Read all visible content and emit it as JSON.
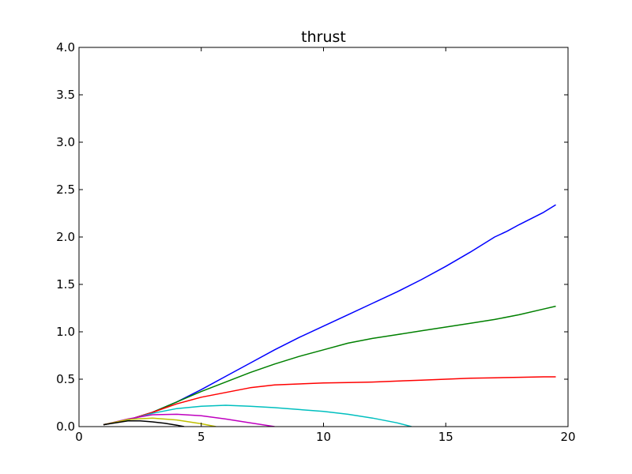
{
  "chart_data": {
    "type": "line",
    "title": "thrust",
    "xlabel": "",
    "ylabel": "",
    "xlim": [
      0,
      20
    ],
    "ylim": [
      0,
      4.0
    ],
    "x_ticks": [
      0,
      5,
      10,
      15,
      20
    ],
    "x_tick_labels": [
      "0",
      "5",
      "10",
      "15",
      "20"
    ],
    "y_ticks": [
      0,
      0.5,
      1.0,
      1.5,
      2.0,
      2.5,
      3.0,
      3.5,
      4.0
    ],
    "y_tick_labels": [
      "0.0",
      "0.5",
      "1.0",
      "1.5",
      "2.0",
      "2.5",
      "3.0",
      "3.5",
      "4.0"
    ],
    "grid": false,
    "legend": "none",
    "series": [
      {
        "color": "#0000ff",
        "points": [
          [
            1.0,
            0.02
          ],
          [
            2.0,
            0.07
          ],
          [
            3.0,
            0.15
          ],
          [
            4.0,
            0.26
          ],
          [
            5.0,
            0.39
          ],
          [
            6.0,
            0.53
          ],
          [
            7.0,
            0.67
          ],
          [
            8.0,
            0.81
          ],
          [
            9.0,
            0.94
          ],
          [
            10.0,
            1.06
          ],
          [
            11.0,
            1.18
          ],
          [
            12.0,
            1.3
          ],
          [
            13.0,
            1.42
          ],
          [
            14.0,
            1.55
          ],
          [
            15.0,
            1.69
          ],
          [
            16.0,
            1.84
          ],
          [
            17.0,
            2.0
          ],
          [
            17.5,
            2.06
          ],
          [
            18.0,
            2.13
          ],
          [
            19.0,
            2.26
          ],
          [
            19.5,
            2.34
          ]
        ]
      },
      {
        "color": "#008000",
        "points": [
          [
            1.0,
            0.02
          ],
          [
            2.0,
            0.07
          ],
          [
            3.0,
            0.15
          ],
          [
            4.0,
            0.26
          ],
          [
            5.0,
            0.37
          ],
          [
            6.0,
            0.47
          ],
          [
            7.0,
            0.57
          ],
          [
            8.0,
            0.66
          ],
          [
            9.0,
            0.74
          ],
          [
            10.0,
            0.81
          ],
          [
            11.0,
            0.88
          ],
          [
            12.0,
            0.93
          ],
          [
            13.0,
            0.97
          ],
          [
            14.0,
            1.01
          ],
          [
            15.0,
            1.05
          ],
          [
            16.0,
            1.09
          ],
          [
            17.0,
            1.13
          ],
          [
            18.0,
            1.18
          ],
          [
            19.0,
            1.24
          ],
          [
            19.5,
            1.27
          ]
        ]
      },
      {
        "color": "#ff0000",
        "points": [
          [
            1.0,
            0.02
          ],
          [
            2.0,
            0.07
          ],
          [
            3.0,
            0.15
          ],
          [
            4.0,
            0.24
          ],
          [
            5.0,
            0.31
          ],
          [
            6.0,
            0.36
          ],
          [
            7.0,
            0.41
          ],
          [
            8.0,
            0.44
          ],
          [
            9.0,
            0.45
          ],
          [
            10.0,
            0.46
          ],
          [
            11.0,
            0.465
          ],
          [
            12.0,
            0.47
          ],
          [
            13.0,
            0.48
          ],
          [
            14.0,
            0.49
          ],
          [
            15.0,
            0.5
          ],
          [
            16.0,
            0.51
          ],
          [
            17.0,
            0.515
          ],
          [
            18.0,
            0.52
          ],
          [
            19.0,
            0.525
          ],
          [
            19.5,
            0.525
          ]
        ]
      },
      {
        "color": "#00bfbf",
        "points": [
          [
            1.0,
            0.02
          ],
          [
            2.0,
            0.07
          ],
          [
            3.0,
            0.14
          ],
          [
            4.0,
            0.19
          ],
          [
            5.0,
            0.215
          ],
          [
            6.0,
            0.225
          ],
          [
            7.0,
            0.215
          ],
          [
            8.0,
            0.2
          ],
          [
            9.0,
            0.18
          ],
          [
            10.0,
            0.16
          ],
          [
            11.0,
            0.13
          ],
          [
            12.0,
            0.09
          ],
          [
            13.0,
            0.04
          ],
          [
            13.6,
            0.0
          ]
        ]
      },
      {
        "color": "#bf00bf",
        "points": [
          [
            1.0,
            0.02
          ],
          [
            2.0,
            0.08
          ],
          [
            3.0,
            0.125
          ],
          [
            4.0,
            0.13
          ],
          [
            5.0,
            0.115
          ],
          [
            6.0,
            0.08
          ],
          [
            7.0,
            0.04
          ],
          [
            8.0,
            0.0
          ]
        ]
      },
      {
        "color": "#bfbf00",
        "points": [
          [
            1.0,
            0.02
          ],
          [
            2.0,
            0.075
          ],
          [
            3.0,
            0.09
          ],
          [
            4.0,
            0.07
          ],
          [
            5.0,
            0.03
          ],
          [
            5.6,
            0.0
          ]
        ]
      },
      {
        "color": "#000000",
        "points": [
          [
            1.0,
            0.02
          ],
          [
            2.0,
            0.06
          ],
          [
            2.5,
            0.06
          ],
          [
            3.0,
            0.05
          ],
          [
            3.5,
            0.035
          ],
          [
            4.0,
            0.015
          ],
          [
            4.3,
            0.0
          ]
        ]
      }
    ]
  }
}
